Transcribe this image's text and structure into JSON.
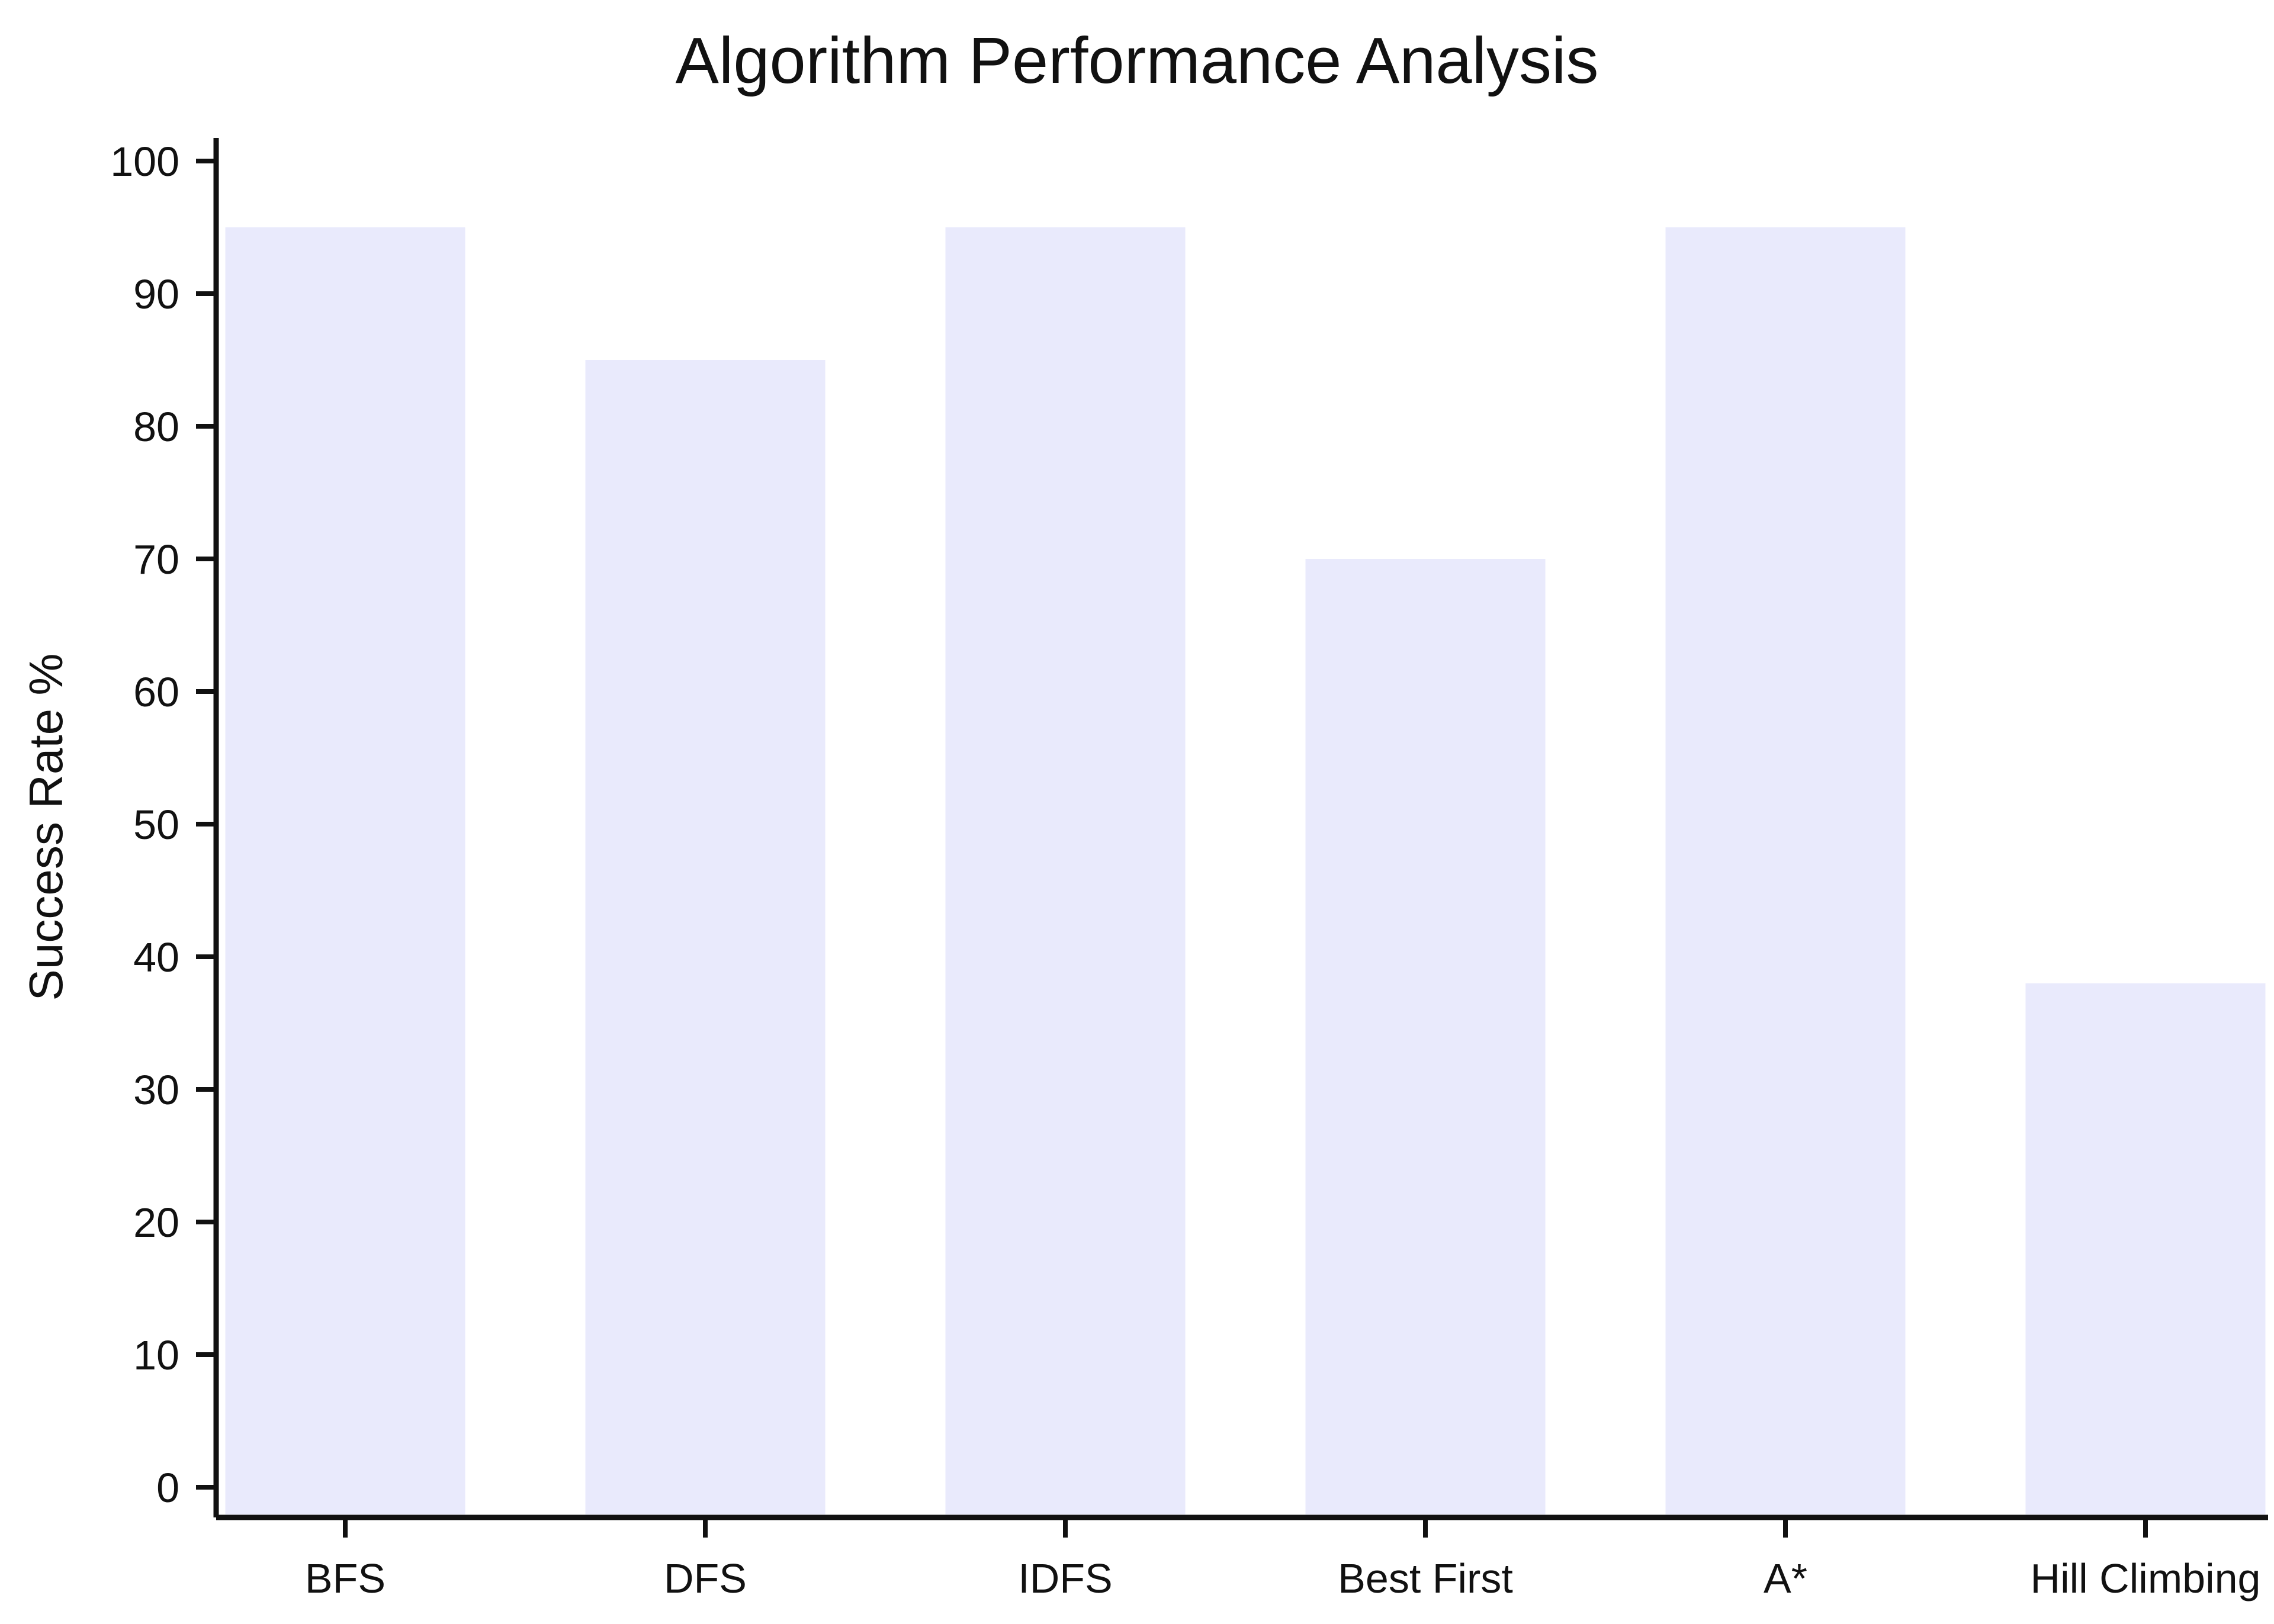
{
  "chart_data": {
    "type": "bar",
    "title": "Algorithm Performance Analysis",
    "xlabel": "",
    "ylabel": "Success Rate %",
    "categories": [
      "BFS",
      "DFS",
      "IDFS",
      "Best First",
      "A*",
      "Hill Climbing"
    ],
    "values": [
      95,
      85,
      95,
      70,
      95,
      38
    ],
    "ylim": [
      0,
      100
    ],
    "yticks": [
      0,
      10,
      20,
      30,
      40,
      50,
      60,
      70,
      80,
      90,
      100
    ],
    "bar_color": "#E9EAFC",
    "axis_color": "#111111",
    "grid": false,
    "legend": "none"
  }
}
